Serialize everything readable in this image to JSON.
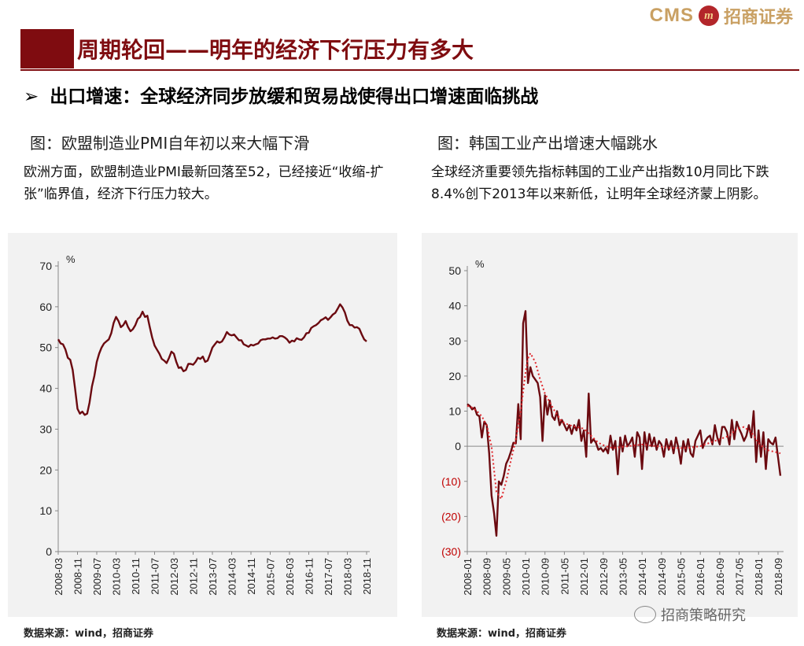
{
  "header": {
    "logo_en": "CMS",
    "logo_badge": "m",
    "logo_cn": "招商证券",
    "title": "周期轮回——明年的经济下行压力有多大",
    "bullet_arrow": "➢",
    "bullet": "出口增速：全球经济同步放缓和贸易战使得出口增速面临挑战"
  },
  "left": {
    "fig_title": "图：欧盟制造业PMI自年初以来大幅下滑",
    "description": "欧洲方面，欧盟制造业PMI最新回落至52，已经接近“收缩-扩张”临界值，经济下行压力较大。",
    "source": "数据来源：wind，招商证券"
  },
  "right": {
    "fig_title": "图：韩国工业产出增速大幅跳水",
    "description": "全球经济重要领先指标韩国的工业产出指数10月同比下跌8.4%创下2013年以来新低，让明年全球经济蒙上阴影。",
    "source": "数据来源：wind，招商证券",
    "watermark": "招商策略研究"
  },
  "chart_data": [
    {
      "type": "line",
      "unit": "%",
      "ylim": [
        0,
        70
      ],
      "yticks": [
        0,
        10,
        20,
        30,
        40,
        50,
        60,
        70
      ],
      "ytick_labels": [
        "0",
        "10",
        "20",
        "30",
        "40",
        "50",
        "60",
        "70"
      ],
      "xlim": [
        2008.167,
        2018.833
      ],
      "xticks": [
        "2008-03",
        "2008-11",
        "2009-07",
        "2010-03",
        "2010-11",
        "2011-07",
        "2012-03",
        "2012-11",
        "2013-07",
        "2014-03",
        "2014-11",
        "2015-07",
        "2016-03",
        "2016-11",
        "2017-07",
        "2018-03",
        "2018-11"
      ],
      "grid": false,
      "colors": {
        "line": "#6b0a10"
      },
      "series": [
        {
          "x": [
            2008.167,
            2008.25,
            2008.333,
            2008.417,
            2008.5,
            2008.583,
            2008.667,
            2008.75,
            2008.833,
            2008.917,
            2009.0,
            2009.083,
            2009.167,
            2009.25,
            2009.333,
            2009.417,
            2009.5,
            2009.583,
            2009.667,
            2009.75,
            2009.833,
            2009.917,
            2010.0,
            2010.083,
            2010.167,
            2010.25,
            2010.333,
            2010.417,
            2010.5,
            2010.583,
            2010.667,
            2010.75,
            2010.833,
            2010.917,
            2011.0,
            2011.083,
            2011.167,
            2011.25,
            2011.333,
            2011.417,
            2011.5,
            2011.583,
            2011.667,
            2011.75,
            2011.833,
            2011.917,
            2012.0,
            2012.083,
            2012.167,
            2012.25,
            2012.333,
            2012.417,
            2012.5,
            2012.583,
            2012.667,
            2012.75,
            2012.833,
            2012.917,
            2013.0,
            2013.083,
            2013.167,
            2013.25,
            2013.333,
            2013.417,
            2013.5,
            2013.583,
            2013.667,
            2013.75,
            2013.833,
            2013.917,
            2014.0,
            2014.083,
            2014.167,
            2014.25,
            2014.333,
            2014.417,
            2014.5,
            2014.583,
            2014.667,
            2014.75,
            2014.833,
            2014.917,
            2015.0,
            2015.083,
            2015.167,
            2015.25,
            2015.333,
            2015.417,
            2015.5,
            2015.583,
            2015.667,
            2015.75,
            2015.833,
            2015.917,
            2016.0,
            2016.083,
            2016.167,
            2016.25,
            2016.333,
            2016.417,
            2016.5,
            2016.583,
            2016.667,
            2016.75,
            2016.833,
            2016.917,
            2017.0,
            2017.083,
            2017.167,
            2017.25,
            2017.333,
            2017.417,
            2017.5,
            2017.583,
            2017.667,
            2017.75,
            2017.833,
            2017.917,
            2018.0,
            2018.083,
            2018.167,
            2018.25,
            2018.333,
            2018.417,
            2018.5,
            2018.583,
            2018.667,
            2018.75,
            2018.833
          ],
          "values": [
            52.0,
            51.0,
            50.8,
            49.5,
            47.5,
            47.0,
            44.5,
            40.0,
            35.0,
            33.8,
            34.3,
            33.5,
            33.8,
            36.5,
            40.5,
            43.0,
            46.5,
            48.5,
            50.0,
            51.0,
            51.5,
            52.0,
            53.5,
            56.0,
            57.5,
            56.5,
            55.0,
            55.5,
            56.5,
            55.0,
            54.0,
            54.5,
            55.5,
            57.0,
            57.5,
            58.8,
            57.5,
            57.8,
            55.0,
            52.5,
            50.5,
            49.5,
            48.5,
            47.2,
            46.8,
            46.2,
            47.5,
            49.0,
            48.5,
            46.5,
            45.0,
            45.2,
            44.2,
            44.5,
            46.0,
            46.0,
            45.8,
            46.5,
            47.5,
            47.2,
            47.8,
            46.5,
            46.8,
            48.3,
            50.0,
            50.8,
            51.5,
            51.2,
            51.5,
            52.5,
            53.8,
            53.2,
            53.0,
            53.2,
            52.5,
            51.8,
            51.8,
            50.8,
            50.5,
            50.2,
            50.7,
            50.5,
            50.8,
            51.0,
            51.8,
            52.0,
            52.0,
            52.2,
            52.2,
            52.5,
            52.2,
            52.3,
            52.8,
            52.8,
            52.5,
            52.0,
            51.2,
            51.7,
            51.5,
            52.3,
            52.0,
            51.9,
            52.5,
            53.5,
            53.6,
            54.8,
            55.2,
            55.5,
            56.0,
            56.7,
            57.0,
            57.4,
            56.8,
            57.4,
            58.1,
            58.5,
            59.5,
            60.6,
            59.8,
            58.6,
            56.6,
            55.5,
            55.5,
            54.9,
            55.0,
            54.6,
            53.2,
            52.0,
            51.5
          ]
        }
      ]
    },
    {
      "type": "line",
      "unit": "%",
      "ylim": [
        -30,
        50
      ],
      "yticks": [
        -30,
        -20,
        -10,
        0,
        10,
        20,
        30,
        40,
        50
      ],
      "ytick_labels": [
        "(30)",
        "(20)",
        "(10)",
        "0",
        "10",
        "20",
        "30",
        "40",
        "50"
      ],
      "xlim": [
        2008.0,
        2018.75
      ],
      "xticks": [
        "2008-01",
        "2008-09",
        "2009-05",
        "2010-01",
        "2010-09",
        "2011-05",
        "2012-01",
        "2012-09",
        "2013-05",
        "2014-01",
        "2014-09",
        "2015-05",
        "2016-01",
        "2016-09",
        "2017-05",
        "2018-01",
        "2018-09"
      ],
      "grid": false,
      "colors": {
        "line": "#6b0a10",
        "trend": "#e0262b",
        "negative_tick": "#c00000"
      },
      "series": [
        {
          "style": "solid",
          "x": [
            2008.0,
            2008.083,
            2008.167,
            2008.25,
            2008.333,
            2008.417,
            2008.5,
            2008.583,
            2008.667,
            2008.75,
            2008.833,
            2008.917,
            2009.0,
            2009.083,
            2009.167,
            2009.25,
            2009.333,
            2009.417,
            2009.5,
            2009.583,
            2009.667,
            2009.75,
            2009.833,
            2009.917,
            2010.0,
            2010.083,
            2010.167,
            2010.25,
            2010.333,
            2010.417,
            2010.5,
            2010.583,
            2010.667,
            2010.75,
            2010.833,
            2010.917,
            2011.0,
            2011.083,
            2011.167,
            2011.25,
            2011.333,
            2011.417,
            2011.5,
            2011.583,
            2011.667,
            2011.75,
            2011.833,
            2011.917,
            2012.0,
            2012.083,
            2012.167,
            2012.25,
            2012.333,
            2012.417,
            2012.5,
            2012.583,
            2012.667,
            2012.75,
            2012.833,
            2012.917,
            2013.0,
            2013.083,
            2013.167,
            2013.25,
            2013.333,
            2013.417,
            2013.5,
            2013.583,
            2013.667,
            2013.75,
            2013.833,
            2013.917,
            2014.0,
            2014.083,
            2014.167,
            2014.25,
            2014.333,
            2014.417,
            2014.5,
            2014.583,
            2014.667,
            2014.75,
            2014.833,
            2014.917,
            2015.0,
            2015.083,
            2015.167,
            2015.25,
            2015.333,
            2015.417,
            2015.5,
            2015.583,
            2015.667,
            2015.75,
            2015.833,
            2015.917,
            2016.0,
            2016.083,
            2016.167,
            2016.25,
            2016.333,
            2016.417,
            2016.5,
            2016.583,
            2016.667,
            2016.75,
            2016.833,
            2016.917,
            2017.0,
            2017.083,
            2017.167,
            2017.25,
            2017.333,
            2017.417,
            2017.5,
            2017.583,
            2017.667,
            2017.75,
            2017.833,
            2017.917,
            2018.0,
            2018.083,
            2018.167,
            2018.25,
            2018.333,
            2018.417,
            2018.5,
            2018.583,
            2018.667,
            2018.75
          ],
          "values": [
            12.0,
            11.5,
            10.5,
            11.0,
            9.0,
            8.5,
            2.5,
            7.0,
            6.0,
            -2.0,
            -14.0,
            -19.0,
            -25.5,
            -10.0,
            -11.0,
            -8.5,
            -5.0,
            -3.5,
            -1.5,
            1.0,
            0.8,
            12.0,
            2.0,
            35.0,
            38.5,
            18.0,
            22.5,
            20.0,
            19.0,
            18.0,
            14.0,
            1.5,
            14.5,
            9.0,
            13.0,
            8.5,
            7.5,
            10.0,
            6.0,
            7.5,
            6.0,
            4.5,
            6.0,
            3.5,
            6.0,
            4.5,
            7.5,
            1.5,
            4.5,
            -3.0,
            15.0,
            1.0,
            2.0,
            1.0,
            -1.0,
            -0.5,
            -1.5,
            -0.5,
            -2.0,
            3.0,
            -1.0,
            1.5,
            -8.0,
            2.5,
            -1.5,
            3.0,
            0.0,
            1.0,
            2.5,
            -3.0,
            4.0,
            2.5,
            -6.5,
            4.0,
            -1.0,
            3.5,
            0.0,
            2.5,
            -1.0,
            1.5,
            0.5,
            -3.0,
            2.0,
            -1.0,
            1.5,
            -2.0,
            2.5,
            -0.5,
            -5.0,
            1.5,
            -1.5,
            2.0,
            -2.0,
            -3.0,
            1.5,
            3.0,
            4.5,
            -0.5,
            1.5,
            2.5,
            3.0,
            0.5,
            6.0,
            2.5,
            0.5,
            5.5,
            5.5,
            4.0,
            0.5,
            7.5,
            2.0,
            7.0,
            5.0,
            3.5,
            1.5,
            3.0,
            6.0,
            2.5,
            10.0,
            -4.5,
            4.5,
            -3.0,
            4.0,
            -6.5,
            2.0,
            1.0,
            0.5,
            2.5,
            -3.0,
            -8.4
          ]
        },
        {
          "style": "dotted",
          "x": [
            2008.0,
            2008.167,
            2008.333,
            2008.5,
            2008.667,
            2008.833,
            2009.0,
            2009.167,
            2009.333,
            2009.5,
            2009.667,
            2009.833,
            2010.0,
            2010.083,
            2010.167,
            2010.333,
            2010.5,
            2010.667,
            2010.833,
            2011.0,
            2011.25,
            2011.5,
            2011.75,
            2012.0,
            2012.25,
            2012.5,
            2012.75,
            2013.0,
            2013.5,
            2014.0,
            2014.5,
            2015.0,
            2015.5,
            2016.0,
            2016.5,
            2017.0,
            2017.25,
            2017.5,
            2017.75,
            2018.0,
            2018.25,
            2018.5,
            2018.75
          ],
          "values": [
            11.5,
            11.0,
            10.0,
            8.5,
            6.0,
            0.0,
            -13.0,
            -15.0,
            -10.0,
            -4.0,
            2.0,
            10.0,
            21.0,
            25.0,
            26.5,
            24.0,
            19.0,
            15.0,
            12.5,
            10.0,
            7.0,
            6.0,
            5.5,
            5.0,
            3.0,
            1.0,
            0.0,
            -0.5,
            0.0,
            0.5,
            0.0,
            -0.5,
            -0.5,
            0.0,
            1.5,
            3.0,
            5.0,
            5.5,
            4.0,
            1.0,
            -1.0,
            -1.5,
            -2.0
          ]
        }
      ]
    }
  ]
}
